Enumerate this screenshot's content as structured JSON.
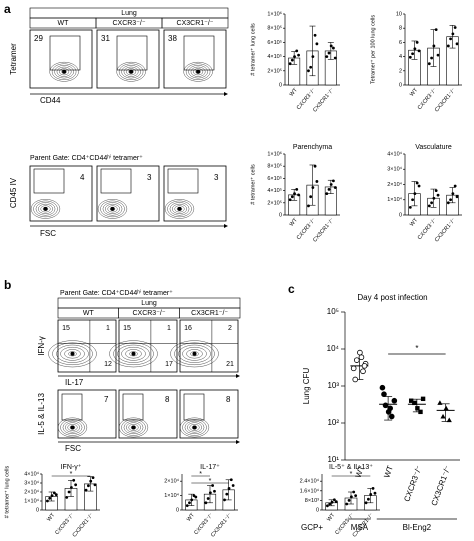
{
  "figure": {
    "panel_a": {
      "label": "a",
      "tissue": "Lung",
      "groups": [
        "WT",
        "CXCR3⁻/⁻",
        "CX3CR1⁻/⁻"
      ],
      "tetramer_axis": "Tetramer",
      "cd44_axis": "CD44",
      "tetramer_gates": [
        29,
        31,
        38
      ],
      "parent_gate": "Parent Gate: CD4⁺CD44ʰⁱ tetramer⁺",
      "cd45_axis": "CD45 IV",
      "fsc_axis": "FSC",
      "iv_gates": [
        4,
        3,
        3
      ]
    },
    "panel_b": {
      "label": "b",
      "parent_gate": "Parent Gate: CD4⁺CD44ʰⁱ tetramer⁺",
      "tissue": "Lung",
      "groups": [
        "WT",
        "CXCR3⁻/⁻",
        "CX3CR1⁻/⁻"
      ],
      "ifng_axis": "IFN-γ",
      "il17_axis": "IL-17",
      "quadrants": [
        [
          15,
          1,
          12
        ],
        [
          15,
          1,
          17
        ],
        [
          16,
          2,
          21
        ]
      ],
      "il5_axis": "IL-5 & IL-13",
      "il5_gates": [
        7,
        8,
        8
      ],
      "fsc_axis": "FSC",
      "bar_axis_label": "# tetramer⁺ lung cells"
    },
    "panel_c": {
      "label": "c"
    }
  },
  "chart_data": [
    {
      "type": "bar",
      "ylabel": "# tetramer⁺ lung cells",
      "categories": [
        "WT",
        "CXCR3⁻/⁻",
        "CX3CR1⁻/⁻"
      ],
      "values": [
        380000,
        480000,
        480000
      ],
      "errors": [
        90000,
        350000,
        120000
      ],
      "points": [
        [
          300000,
          350000,
          400000,
          480000,
          420000
        ],
        [
          200000,
          250000,
          400000,
          700000,
          580000
        ],
        [
          400000,
          450000,
          550000,
          520000,
          380000
        ]
      ],
      "ylim": [
        0,
        1000000
      ],
      "yticks": [
        0,
        {
          "value": 200000,
          "label": "2×10⁵"
        },
        {
          "value": 400000,
          "label": "4×10⁵"
        },
        {
          "value": 600000,
          "label": "6×10⁵"
        },
        {
          "value": 800000,
          "label": "8×10⁵"
        },
        {
          "value": 1000000,
          "label": "1×10⁶"
        }
      ],
      "color": "#ffffff"
    },
    {
      "type": "bar",
      "ylabel": "Tetramer⁺ per 100 lung cells",
      "categories": [
        "WT",
        "CXCR3⁻/⁻",
        "CX3CR1⁻/⁻"
      ],
      "values": [
        4.9,
        5.2,
        6.8
      ],
      "errors": [
        1.3,
        2.6,
        1.6
      ],
      "points": [
        [
          3.9,
          4.4,
          5.1,
          6.0,
          4.8
        ],
        [
          3.0,
          3.8,
          5.5,
          7.8,
          4.2
        ],
        [
          5.5,
          6.5,
          7.2,
          8.1,
          5.8
        ]
      ],
      "ylim": [
        0,
        10
      ],
      "yticks": [
        0,
        2,
        4,
        6,
        8,
        10
      ],
      "color": "#ffffff"
    },
    {
      "type": "bar",
      "title": "Parenchyma",
      "ylabel": "# tetramer⁺ cells",
      "categories": [
        "WT",
        "CXCR3⁻/⁻",
        "CX3CR1⁻/⁻"
      ],
      "values": [
        330000,
        490000,
        460000
      ],
      "errors": [
        90000,
        330000,
        110000
      ],
      "points": [
        [
          250000,
          300000,
          350000,
          420000,
          330000
        ],
        [
          150000,
          300000,
          450000,
          800000,
          550000
        ],
        [
          350000,
          420000,
          500000,
          560000,
          450000
        ]
      ],
      "ylim": [
        0,
        1000000
      ],
      "yticks": [
        0,
        {
          "value": 200000,
          "label": "2×10⁵"
        },
        {
          "value": 400000,
          "label": "4×10⁵"
        },
        {
          "value": 600000,
          "label": "6×10⁵"
        },
        {
          "value": 800000,
          "label": "8×10⁵"
        },
        {
          "value": 1000000,
          "label": "1×10⁶"
        }
      ],
      "color": "#ffffff"
    },
    {
      "type": "bar",
      "title": "Vasculature",
      "categories": [
        "WT",
        "CXCR3⁻/⁻",
        "CX3CR1⁻/⁻"
      ],
      "values": [
        14000,
        11000,
        13000
      ],
      "errors": [
        8000,
        6000,
        5000
      ],
      "points": [
        [
          5000,
          10000,
          14000,
          21000,
          19000
        ],
        [
          6000,
          8000,
          11000,
          16000,
          13000
        ],
        [
          8000,
          10000,
          14000,
          19000,
          12000
        ]
      ],
      "ylim": [
        0,
        40000
      ],
      "yticks": [
        0,
        {
          "value": 10000,
          "label": "1×10⁴"
        },
        {
          "value": 20000,
          "label": "2×10⁴"
        },
        {
          "value": 30000,
          "label": "3×10⁴"
        },
        {
          "value": 40000,
          "label": "4×10⁴"
        }
      ],
      "color": "#ffffff"
    },
    {
      "type": "bar",
      "title": "IFN-γ⁺",
      "categories": [
        "WT",
        "CXCR3⁻/⁻",
        "CX3CR1⁻/⁻"
      ],
      "values": [
        15000,
        24000,
        29000
      ],
      "errors": [
        5000,
        9000,
        8000
      ],
      "points": [
        [
          10000,
          13000,
          16000,
          19000,
          17000
        ],
        [
          14000,
          20000,
          25000,
          33000,
          28000
        ],
        [
          22000,
          27000,
          32000,
          36000,
          28000
        ]
      ],
      "ylim": [
        0,
        40000
      ],
      "yticks": [
        0,
        {
          "value": 10000,
          "label": "1×10⁴"
        },
        {
          "value": 20000,
          "label": "2×10⁴"
        },
        {
          "value": 30000,
          "label": "3×10⁴"
        },
        {
          "value": 40000,
          "label": "4×10⁴"
        }
      ],
      "significance": [
        {
          "pair": [
            0,
            2
          ],
          "label": "*"
        }
      ],
      "color": "#ffffff"
    },
    {
      "type": "bar",
      "title": "IL-17⁺",
      "categories": [
        "WT",
        "CXCR3⁻/⁻",
        "CX3CR1⁻/⁻"
      ],
      "values": [
        7000,
        11000,
        14000
      ],
      "errors": [
        4000,
        6000,
        7000
      ],
      "points": [
        [
          3000,
          5000,
          7000,
          10000,
          9000
        ],
        [
          5000,
          8000,
          12000,
          17000,
          13000
        ],
        [
          7000,
          11000,
          15000,
          21000,
          17000
        ]
      ],
      "ylim": [
        0,
        25000
      ],
      "yticks": [
        0,
        {
          "value": 10000,
          "label": "1×10⁴"
        },
        {
          "value": 20000,
          "label": "2×10⁴"
        }
      ],
      "significance": [
        {
          "pair": [
            0,
            1
          ],
          "label": "*"
        },
        {
          "pair": [
            0,
            2
          ],
          "label": "*"
        }
      ],
      "color": "#ffffff"
    },
    {
      "type": "bar",
      "title": "IL-5⁺ & IL-13⁺",
      "categories": [
        "WT",
        "CXCR3⁻/⁻",
        "CX3CR1⁻/⁻"
      ],
      "values": [
        6000,
        10000,
        12000
      ],
      "errors": [
        2500,
        5000,
        6000
      ],
      "points": [
        [
          3500,
          5000,
          6500,
          8500,
          7000
        ],
        [
          5000,
          8000,
          11000,
          15000,
          12000
        ],
        [
          6000,
          9000,
          13000,
          18000,
          14000
        ]
      ],
      "ylim": [
        0,
        30000
      ],
      "yticks": [
        0,
        {
          "value": 8000,
          "label": "8×10³"
        },
        {
          "value": 16000,
          "label": "1.6×10⁴"
        },
        {
          "value": 24000,
          "label": "2.4×10⁴"
        }
      ],
      "significance": [
        {
          "pair": [
            0,
            2
          ],
          "label": "*"
        }
      ],
      "color": "#ffffff"
    },
    {
      "type": "dot",
      "title": "Day 4 post infection",
      "ylabel": "Lung CFU",
      "ylog": true,
      "categories": [
        "WT",
        "WT",
        "CXCR3⁻/⁻",
        "CX3CR1⁻/⁻"
      ],
      "values": [
        3500,
        320,
        320,
        220
      ],
      "lower": [
        1500,
        120,
        200,
        110
      ],
      "upper": [
        5500,
        520,
        440,
        330
      ],
      "points": [
        [
          3000,
          5000,
          8000,
          2500,
          4000,
          1500,
          6000,
          3500
        ],
        [
          900,
          300,
          200,
          150,
          400,
          600,
          250
        ],
        [
          400,
          350,
          250,
          200,
          450
        ],
        [
          350,
          150,
          250,
          120
        ]
      ],
      "markers": [
        "circle-open",
        "circle",
        "square",
        "triangle"
      ],
      "ylim": [
        10,
        100000
      ],
      "yticks": [
        {
          "value": 10,
          "label": "10¹"
        },
        {
          "value": 100,
          "label": "10²"
        },
        {
          "value": 1000,
          "label": "10³"
        },
        {
          "value": 10000,
          "label": "10⁴"
        },
        {
          "value": 100000,
          "label": "10⁵"
        }
      ],
      "group_row_label": "GCP+",
      "groups": [
        {
          "label": "MSA",
          "span": [
            0,
            0
          ]
        },
        {
          "label": "Bl-Eng2",
          "span": [
            1,
            3
          ]
        }
      ],
      "significance": [
        {
          "pair": [
            1,
            3
          ],
          "label": "*"
        }
      ],
      "color": "#000000"
    }
  ]
}
